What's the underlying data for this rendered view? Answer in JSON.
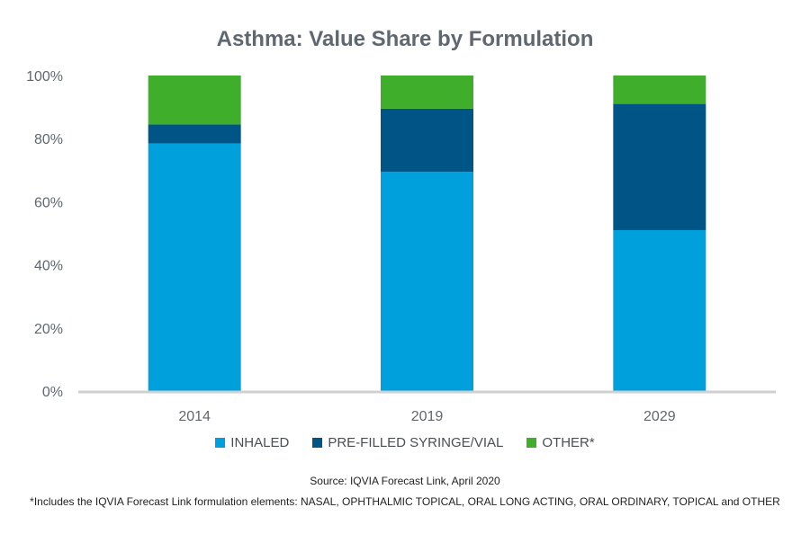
{
  "chart_data": {
    "type": "bar",
    "stacked": true,
    "title": "Asthma: Value Share by Formulation",
    "categories": [
      "2014",
      "2019",
      "2029"
    ],
    "series": [
      {
        "name": "INHALED",
        "color": "#00a0dd",
        "values": [
          78.5,
          69.5,
          51
        ]
      },
      {
        "name": "PRE-FILLED SYRINGE/VIAL",
        "color": "#005587",
        "values": [
          6,
          20,
          40
        ]
      },
      {
        "name": "OTHER*",
        "color": "#3fae2a",
        "values": [
          15.5,
          10.5,
          9
        ]
      }
    ],
    "ylim": [
      0,
      100
    ],
    "yticks": [
      "0%",
      "20%",
      "40%",
      "60%",
      "80%",
      "100%"
    ],
    "xlabel": "",
    "ylabel": "",
    "grid": false,
    "legend_position": "bottom"
  },
  "source": "Source: IQVIA Forecast Link, April 2020",
  "footnote": "*Includes the IQVIA Forecast Link formulation elements: NASAL, OPHTHALMIC TOPICAL, ORAL LONG ACTING, ORAL ORDINARY, TOPICAL and OTHER"
}
